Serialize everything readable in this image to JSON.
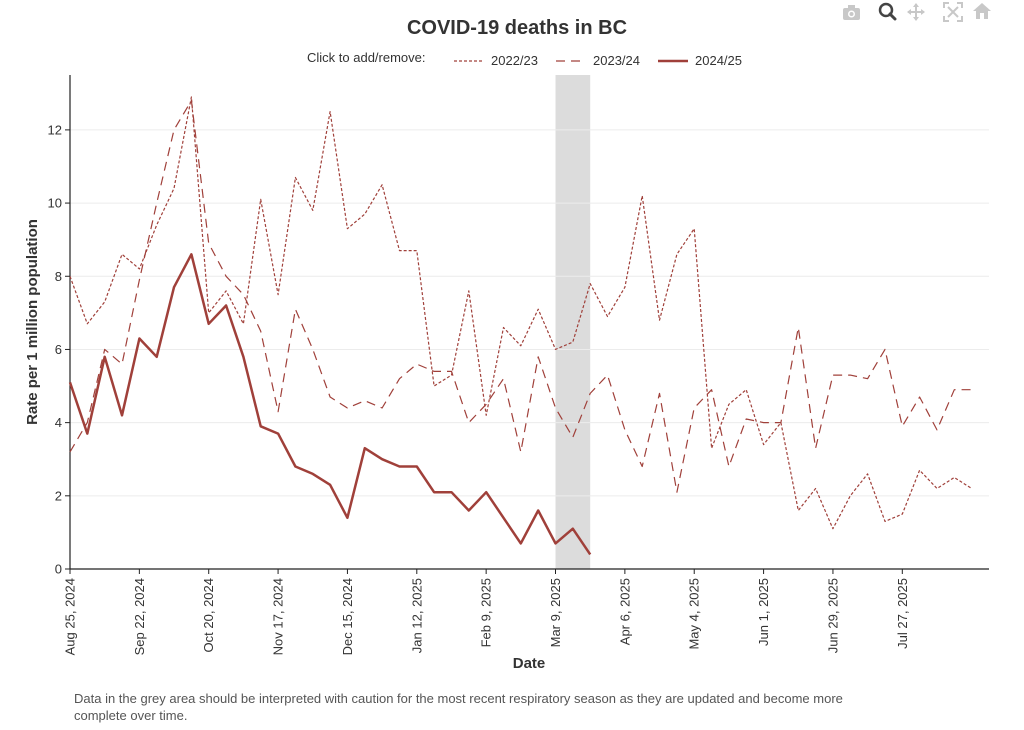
{
  "toolbar": {
    "icons": [
      "camera-icon",
      "zoom-icon",
      "pan-icon",
      "autoscale-icon",
      "home-icon"
    ]
  },
  "colors": {
    "line": "#a0403a",
    "shade": "#dcdcdc",
    "grid": "#ececec"
  },
  "caption": "Data in the grey area should be interpreted with caution for the most recent respiratory season as they are updated and become more complete over time.",
  "chart_data": {
    "type": "line",
    "title": "COVID-19 deaths in BC",
    "xlabel": "Date",
    "ylabel": "Rate per 1 million population",
    "legend_lead": "Click to add/remove:",
    "legend_position": "top-center",
    "grid": true,
    "ylim": [
      0,
      13.5
    ],
    "yticks": [
      0,
      2,
      4,
      6,
      8,
      10,
      12
    ],
    "xlim": [
      "2024-08-25",
      "2025-08-31"
    ],
    "xtick_labels": [
      "Aug 25, 2024",
      "Sep 22, 2024",
      "Oct 20, 2024",
      "Nov 17, 2024",
      "Dec 15, 2024",
      "Jan 12, 2025",
      "Feb 9, 2025",
      "Mar 9, 2025",
      "Apr 6, 2025",
      "May 4, 2025",
      "Jun 1, 2025",
      "Jun 29, 2025",
      "Jul 27, 2025"
    ],
    "shaded_range": [
      "2025-03-09",
      "2025-03-23"
    ],
    "series": [
      {
        "name": "2022/23",
        "style": "dotted",
        "x": [
          "2024-08-25",
          "2024-09-01",
          "2024-09-08",
          "2024-09-15",
          "2024-09-22",
          "2024-09-29",
          "2024-10-06",
          "2024-10-13",
          "2024-10-20",
          "2024-10-27",
          "2024-11-03",
          "2024-11-10",
          "2024-11-17",
          "2024-11-24",
          "2024-12-01",
          "2024-12-08",
          "2024-12-15",
          "2024-12-22",
          "2024-12-29",
          "2025-01-05",
          "2025-01-12",
          "2025-01-19",
          "2025-01-26",
          "2025-02-02",
          "2025-02-09",
          "2025-02-16",
          "2025-02-23",
          "2025-03-02",
          "2025-03-09",
          "2025-03-16",
          "2025-03-23",
          "2025-03-30",
          "2025-04-06",
          "2025-04-13",
          "2025-04-20",
          "2025-04-27",
          "2025-05-04",
          "2025-05-11",
          "2025-05-18",
          "2025-05-25",
          "2025-06-01",
          "2025-06-08",
          "2025-06-15",
          "2025-06-22",
          "2025-06-29",
          "2025-07-06",
          "2025-07-13",
          "2025-07-20",
          "2025-07-27",
          "2025-08-03",
          "2025-08-10",
          "2025-08-17",
          "2025-08-24"
        ],
        "y": [
          8.0,
          6.7,
          7.3,
          8.6,
          8.2,
          9.4,
          10.4,
          12.9,
          7.0,
          7.6,
          6.7,
          10.1,
          7.5,
          10.7,
          9.8,
          12.5,
          9.3,
          9.7,
          10.5,
          8.7,
          8.7,
          5.0,
          5.3,
          7.6,
          4.2,
          6.6,
          6.1,
          7.1,
          6.0,
          6.2,
          7.8,
          6.9,
          7.7,
          10.2,
          6.8,
          8.6,
          9.3,
          3.3,
          4.5,
          4.9,
          3.4,
          4.0,
          1.6,
          2.2,
          1.1,
          2.0,
          2.6,
          1.3,
          1.5,
          2.7,
          2.2,
          2.5,
          2.2
        ]
      },
      {
        "name": "2023/24",
        "style": "dashed",
        "x": [
          "2024-08-25",
          "2024-09-01",
          "2024-09-08",
          "2024-09-15",
          "2024-09-22",
          "2024-09-29",
          "2024-10-06",
          "2024-10-13",
          "2024-10-20",
          "2024-10-27",
          "2024-11-03",
          "2024-11-10",
          "2024-11-17",
          "2024-11-24",
          "2024-12-01",
          "2024-12-08",
          "2024-12-15",
          "2024-12-22",
          "2024-12-29",
          "2025-01-05",
          "2025-01-12",
          "2025-01-19",
          "2025-01-26",
          "2025-02-02",
          "2025-02-09",
          "2025-02-16",
          "2025-02-23",
          "2025-03-02",
          "2025-03-09",
          "2025-03-16",
          "2025-03-23",
          "2025-03-30",
          "2025-04-06",
          "2025-04-13",
          "2025-04-20",
          "2025-04-27",
          "2025-05-04",
          "2025-05-11",
          "2025-05-18",
          "2025-05-25",
          "2025-06-01",
          "2025-06-08",
          "2025-06-15",
          "2025-06-22",
          "2025-06-29",
          "2025-07-06",
          "2025-07-13",
          "2025-07-20",
          "2025-07-27",
          "2025-08-03",
          "2025-08-10",
          "2025-08-17",
          "2025-08-24"
        ],
        "y": [
          3.2,
          4.0,
          6.0,
          5.6,
          7.9,
          10.0,
          12.0,
          12.8,
          8.9,
          8.0,
          7.5,
          6.5,
          4.3,
          7.1,
          6.0,
          4.7,
          4.4,
          4.6,
          4.4,
          5.2,
          5.6,
          5.4,
          5.4,
          4.0,
          4.5,
          5.2,
          3.2,
          5.8,
          4.4,
          3.6,
          4.8,
          5.3,
          3.8,
          2.8,
          4.8,
          2.1,
          4.4,
          4.9,
          2.8,
          4.1,
          4.0,
          4.0,
          6.6,
          3.3,
          5.3,
          5.3,
          5.2,
          6.0,
          3.9,
          4.7,
          3.8,
          4.9,
          4.9
        ]
      },
      {
        "name": "2024/25",
        "style": "solid",
        "x": [
          "2024-08-25",
          "2024-09-01",
          "2024-09-08",
          "2024-09-15",
          "2024-09-22",
          "2024-09-29",
          "2024-10-06",
          "2024-10-13",
          "2024-10-20",
          "2024-10-27",
          "2024-11-03",
          "2024-11-10",
          "2024-11-17",
          "2024-11-24",
          "2024-12-01",
          "2024-12-08",
          "2024-12-15",
          "2024-12-22",
          "2024-12-29",
          "2025-01-05",
          "2025-01-12",
          "2025-01-19",
          "2025-01-26",
          "2025-02-02",
          "2025-02-09",
          "2025-02-16",
          "2025-02-23",
          "2025-03-02",
          "2025-03-09",
          "2025-03-16",
          "2025-03-23"
        ],
        "y": [
          5.1,
          3.7,
          5.8,
          4.2,
          6.3,
          5.8,
          7.7,
          8.6,
          6.7,
          7.2,
          5.8,
          3.9,
          3.7,
          2.8,
          2.6,
          2.3,
          1.4,
          3.3,
          3.0,
          2.8,
          2.8,
          2.1,
          2.1,
          1.6,
          2.1,
          1.4,
          0.7,
          1.6,
          0.7,
          1.1,
          0.4
        ]
      }
    ]
  }
}
